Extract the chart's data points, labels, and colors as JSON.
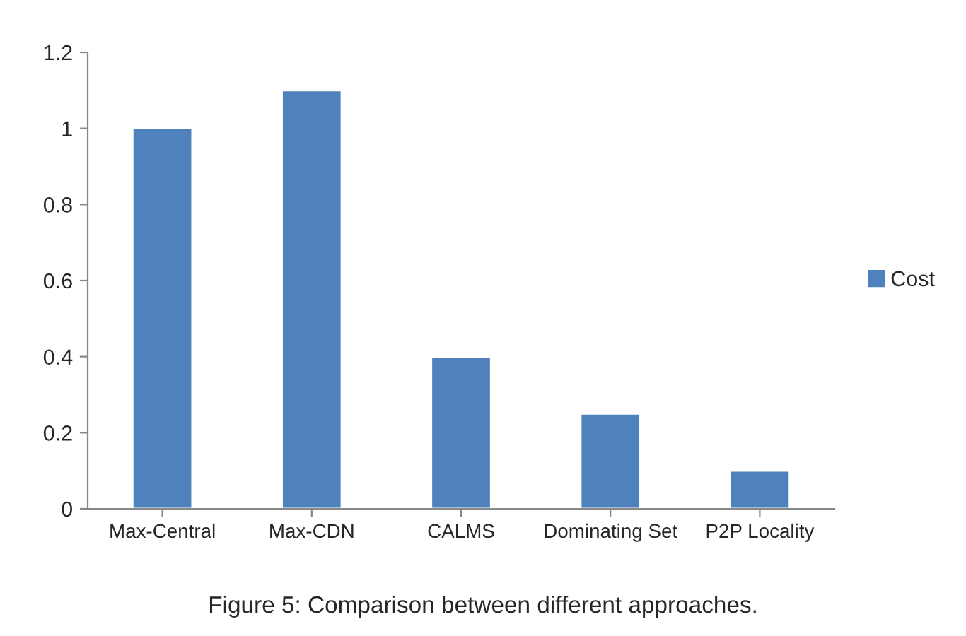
{
  "chart_data": {
    "type": "bar",
    "categories": [
      "Max-Central",
      "Max-CDN",
      "CALMS",
      "Dominating Set",
      "P2P Locality"
    ],
    "series": [
      {
        "name": "Cost",
        "color": "#4f81bd",
        "values": [
          1,
          1.1,
          0.4,
          0.25,
          0.1
        ]
      }
    ],
    "ylim": [
      0,
      1.2
    ],
    "yticks": [
      0,
      0.2,
      0.4,
      0.6,
      0.8,
      1,
      1.2
    ],
    "grid": false,
    "legend": "right",
    "annotations": [
      "Figure 5: Comparison between different approaches."
    ]
  }
}
